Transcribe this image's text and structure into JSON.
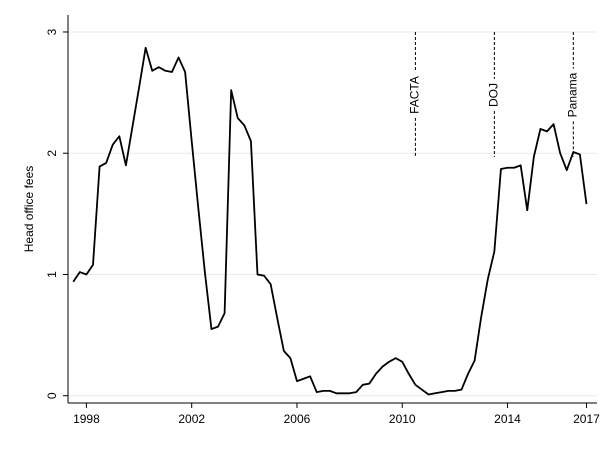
{
  "chart_data": {
    "type": "line",
    "y_label": "Head office fees",
    "x": [
      1997.5,
      1997.75,
      1998,
      1998.25,
      1998.5,
      1998.75,
      1999,
      1999.25,
      1999.5,
      1999.75,
      2000,
      2000.25,
      2000.5,
      2000.75,
      2001,
      2001.25,
      2001.5,
      2001.75,
      2002,
      2002.25,
      2002.5,
      2002.75,
      2003,
      2003.25,
      2003.5,
      2003.75,
      2004,
      2004.25,
      2004.5,
      2004.75,
      2005,
      2005.25,
      2005.5,
      2005.75,
      2006,
      2006.25,
      2006.5,
      2006.75,
      2007,
      2007.25,
      2007.5,
      2007.75,
      2008,
      2008.25,
      2008.5,
      2008.75,
      2009,
      2009.25,
      2009.5,
      2009.75,
      2010,
      2010.25,
      2010.5,
      2010.75,
      2011,
      2011.25,
      2011.5,
      2011.75,
      2012,
      2012.25,
      2012.5,
      2012.75,
      2013,
      2013.25,
      2013.5,
      2013.75,
      2014,
      2014.25,
      2014.5,
      2014.75,
      2015,
      2015.25,
      2015.5,
      2015.75,
      2016,
      2016.25,
      2016.5,
      2016.75,
      2017
    ],
    "series": [
      {
        "color": "#000000",
        "values": [
          0.94,
          1.02,
          1.0,
          1.08,
          1.89,
          1.92,
          2.07,
          2.14,
          1.9,
          2.22,
          2.54,
          2.87,
          2.68,
          2.71,
          2.68,
          2.67,
          2.79,
          2.67,
          2.1,
          1.55,
          1.02,
          0.55,
          0.57,
          0.68,
          2.52,
          2.29,
          2.23,
          2.1,
          1.0,
          0.99,
          0.92,
          0.64,
          0.37,
          0.31,
          0.12,
          0.14,
          0.16,
          0.03,
          0.04,
          0.04,
          0.02,
          0.02,
          0.02,
          0.03,
          0.09,
          0.1,
          0.18,
          0.24,
          0.28,
          0.31,
          0.28,
          0.18,
          0.09,
          0.05,
          0.01,
          0.02,
          0.03,
          0.04,
          0.04,
          0.05,
          0.18,
          0.29,
          0.65,
          0.96,
          1.19,
          1.87,
          1.88,
          1.88,
          1.9,
          1.53,
          1.97,
          2.2,
          2.18,
          2.24,
          2.0,
          1.86,
          2.01,
          1.99,
          1.58
        ]
      }
    ],
    "xlim": [
      1997.3,
      2017.4
    ],
    "xticks": [
      1998,
      2002,
      2006,
      2010,
      2014,
      2017
    ],
    "ylim": [
      -0.06,
      3.14
    ],
    "yticks": [
      0,
      1,
      2,
      3
    ],
    "grid": true,
    "annotations": [
      {
        "text": "FACTA",
        "x": 2010.5
      },
      {
        "text": "DOJ",
        "x": 2013.5
      },
      {
        "text": "Panama",
        "x": 2016.5
      }
    ]
  }
}
